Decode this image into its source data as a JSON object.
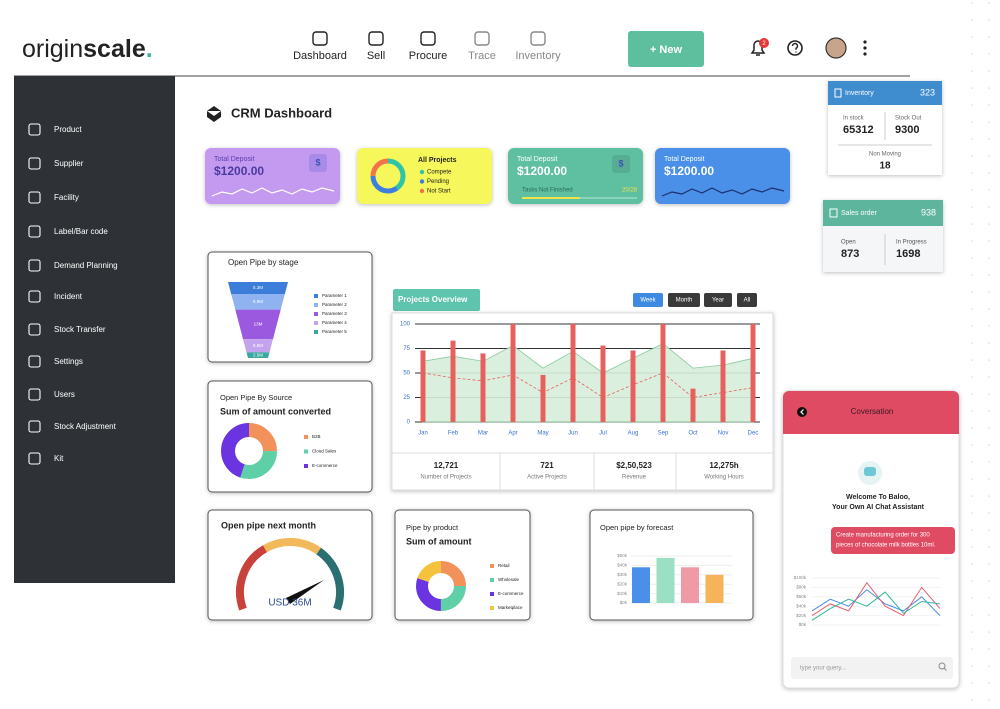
{
  "header": {
    "logo": {
      "light": "origin",
      "bold": "scale",
      "dot": "."
    },
    "nav": [
      {
        "label": "Dashboard"
      },
      {
        "label": "Sell"
      },
      {
        "label": "Procure"
      },
      {
        "label": "Trace",
        "muted": true
      },
      {
        "label": "Inventory",
        "muted": true
      }
    ],
    "new_button": "+ New",
    "notifications": 2
  },
  "sidebar": [
    "Product",
    "Supplier",
    "Facility",
    "Label/Bar code",
    "Demand Planning",
    "Incident",
    "Stock Transfer",
    "Settings",
    "Users",
    "Stock Adjustment",
    "Kit"
  ],
  "page_title": "CRM Dashboard",
  "cards": [
    {
      "label": "Total Deposit",
      "amount": "$1200.00",
      "icon": "$"
    },
    {
      "title": "All Projects",
      "type": "donut",
      "series": [
        {
          "name": "Compete",
          "color": "#2ec4a6",
          "value": 40
        },
        {
          "name": "Pending",
          "color": "#3d7fe0",
          "value": 35
        },
        {
          "name": "Not Start",
          "color": "#f0734a",
          "value": 25
        }
      ]
    },
    {
      "label": "Total Deposit",
      "amount": "$1200.00",
      "icon": "$",
      "progress_label": "Tasks Not Finished",
      "progress": "20/28"
    },
    {
      "label": "Total Deposit",
      "amount": "$1200.00"
    }
  ],
  "inventory": {
    "title": "Inventory",
    "total": 323,
    "in_stock_label": "In stock",
    "in_stock": 65312,
    "stock_out_label": "Stock Out",
    "stock_out": 9300,
    "non_moving_label": "Non Moving",
    "non_moving": 18
  },
  "sales_order": {
    "title": "Sales order",
    "total": 938,
    "open_label": "Open",
    "open": 873,
    "in_progress_label": "In Progress",
    "in_progress": 1698
  },
  "pipe_by_stage": {
    "type": "funnel",
    "title": "Open Pipe by stage",
    "categories": [
      "Parameter 1",
      "Parameter 2",
      "Parameter 3",
      "Parameter 4",
      "Parameter 5"
    ],
    "values": [
      5.3,
      6.9,
      13,
      5.8,
      2.5
    ],
    "value_labels": [
      "5.3M",
      "6.9M",
      "13M",
      "5.8M",
      "2.5M"
    ],
    "colors": [
      "#3b7dd8",
      "#8fb3f0",
      "#9b59e0",
      "#c4a3ee",
      "#3aa8a0"
    ]
  },
  "projects_overview": {
    "type": "bar",
    "title": "Projects Overview",
    "filters": [
      "Week",
      "Month",
      "Year",
      "All"
    ],
    "active_filter": 0,
    "categories": [
      "Jan",
      "Feb",
      "Mar",
      "Apr",
      "May",
      "Jun",
      "Jul",
      "Aug",
      "Sep",
      "Oct",
      "Nov",
      "Dec"
    ],
    "ylim": [
      0,
      100
    ],
    "yticks": [
      0,
      25,
      50,
      75,
      100
    ],
    "grid": true,
    "series": [
      {
        "kind": "bar",
        "color": "#e8605d",
        "values": [
          73,
          83,
          70,
          100,
          48,
          100,
          78,
          73,
          100,
          34,
          73,
          100
        ]
      },
      {
        "kind": "area",
        "color": "#7cc494",
        "values": [
          62,
          67,
          62,
          78,
          55,
          72,
          50,
          65,
          80,
          55,
          58,
          65
        ]
      },
      {
        "kind": "dashed",
        "color": "#e8605d",
        "values": [
          50,
          45,
          42,
          48,
          30,
          45,
          25,
          38,
          50,
          25,
          30,
          35
        ]
      }
    ],
    "stats": [
      {
        "value": "12,721",
        "label": "Number of Projects"
      },
      {
        "value": "721",
        "label": "Active Projects"
      },
      {
        "value": "$2,50,523",
        "label": "Revenue"
      },
      {
        "value": "12,275h",
        "label": "Working Hours"
      }
    ]
  },
  "pipe_by_source": {
    "type": "donut",
    "title": "Open Pipe By Source",
    "subtitle": "Sum of amount converted",
    "series": [
      {
        "name": "B2B",
        "color": "#f2925a",
        "value": 25
      },
      {
        "name": "Cloud Sales",
        "color": "#5fcfa8",
        "value": 30
      },
      {
        "name": "E-commerce",
        "color": "#6a35e0",
        "value": 45
      }
    ]
  },
  "pipe_next_month": {
    "type": "gauge",
    "title": "Open pipe next month",
    "value_label": "USD 36M"
  },
  "pipe_by_product": {
    "type": "donut",
    "title": "Pipe by product",
    "subtitle": "Sum of amount",
    "series": [
      {
        "name": "Retail",
        "color": "#f2925a",
        "value": 25
      },
      {
        "name": "Wholesale",
        "color": "#5fcfa8",
        "value": 25
      },
      {
        "name": "E-commerce",
        "color": "#6a35e0",
        "value": 30
      },
      {
        "name": "Marketplace",
        "color": "#f5c33b",
        "value": 20
      }
    ]
  },
  "pipe_by_forecast": {
    "type": "bar",
    "title": "Open pipe by forecast",
    "ylim": [
      0,
      50
    ],
    "yticks": [
      {
        "value": 0,
        "label": "$0k"
      },
      {
        "value": 10,
        "label": "$10k"
      },
      {
        "value": 20,
        "label": "$20k"
      },
      {
        "value": 30,
        "label": "$30k"
      },
      {
        "value": 40,
        "label": "$40k"
      },
      {
        "value": 50,
        "label": "$50k"
      }
    ],
    "values": [
      38,
      48,
      38,
      30
    ],
    "colors": [
      "#4a90e8",
      "#9be0c4",
      "#ef9aa6",
      "#f5b35a"
    ]
  },
  "chat": {
    "title": "Coversation",
    "welcome_lines": [
      "Welcome To Baloo,",
      "Your Own AI Chat Assistant"
    ],
    "message_lines": [
      "Create manufacturing order for 300",
      "pieces of chocolate milk bottles 10ml."
    ],
    "placeholder": "type your query...",
    "chart": {
      "type": "line",
      "ylim": [
        0,
        100
      ],
      "yticks": [
        {
          "value": 0,
          "label": "$0k"
        },
        {
          "value": 20,
          "label": "$20k"
        },
        {
          "value": 40,
          "label": "$40k"
        },
        {
          "value": 60,
          "label": "$60k"
        },
        {
          "value": 80,
          "label": "$80k"
        },
        {
          "value": 100,
          "label": "$100k"
        }
      ],
      "series": [
        {
          "color": "#4a8fe8",
          "values": [
            30,
            55,
            40,
            75,
            45,
            30,
            60,
            20
          ]
        },
        {
          "color": "#e06070",
          "values": [
            20,
            45,
            30,
            90,
            40,
            20,
            80,
            35
          ]
        },
        {
          "color": "#2fb89a",
          "values": [
            10,
            35,
            55,
            40,
            70,
            25,
            50,
            45
          ]
        }
      ]
    }
  }
}
